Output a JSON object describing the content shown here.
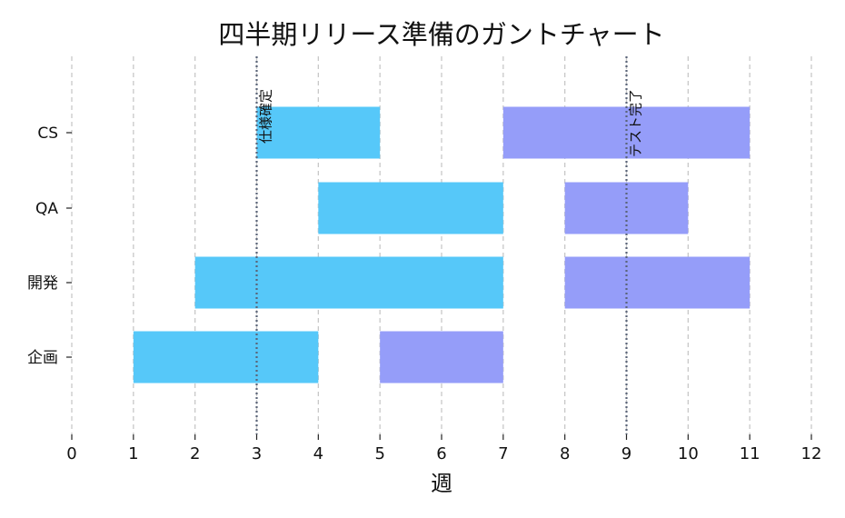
{
  "chart_data": {
    "type": "gantt",
    "title": "四半期リリース準備のガントチャート",
    "xlabel": "週",
    "ylabel": "",
    "xlim": [
      0,
      12
    ],
    "xticks": [
      0,
      1,
      2,
      3,
      4,
      5,
      6,
      7,
      8,
      9,
      10,
      11,
      12
    ],
    "categories": [
      "CS",
      "QA",
      "開発",
      "企画"
    ],
    "grid": "vertical dashed",
    "colors": {
      "phase1": "#56C8F9",
      "phase2": "#959DF9",
      "milestone": "#5A6478"
    },
    "tasks": [
      {
        "category": "CS",
        "start": 3,
        "end": 5,
        "color": "#56C8F9"
      },
      {
        "category": "CS",
        "start": 7,
        "end": 11,
        "color": "#959DF9"
      },
      {
        "category": "QA",
        "start": 4,
        "end": 7,
        "color": "#56C8F9"
      },
      {
        "category": "QA",
        "start": 8,
        "end": 10,
        "color": "#959DF9"
      },
      {
        "category": "開発",
        "start": 2,
        "end": 7,
        "color": "#56C8F9"
      },
      {
        "category": "開発",
        "start": 8,
        "end": 11,
        "color": "#959DF9"
      },
      {
        "category": "企画",
        "start": 1,
        "end": 4,
        "color": "#56C8F9"
      },
      {
        "category": "企画",
        "start": 5,
        "end": 7,
        "color": "#959DF9"
      }
    ],
    "milestones": [
      {
        "x": 3,
        "label": "仕様確定"
      },
      {
        "x": 9,
        "label": "テスト完了"
      }
    ]
  }
}
